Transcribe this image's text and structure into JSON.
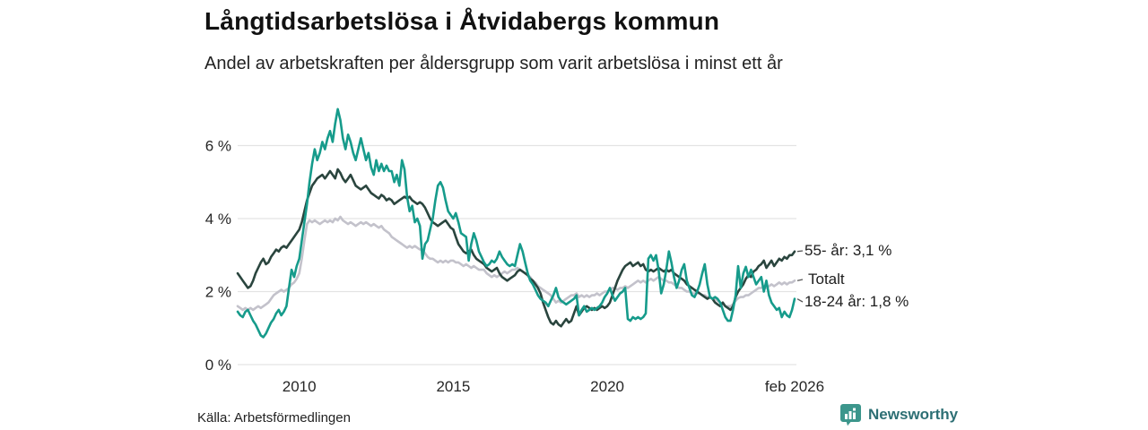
{
  "header": {
    "title": "Långtidsarbetslösa i Åtvidabergs kommun",
    "subtitle": "Andel av arbetskraften per åldersgrupp som varit arbetslösa i minst ett år"
  },
  "footer": {
    "source": "Källa: Arbetsförmedlingen",
    "brand_name": "Newsworthy",
    "brand_icon": "bar-chart-pin-icon",
    "brand_color": "#3c968c",
    "brand_text_color": "#2d6f74"
  },
  "colors": {
    "grid": "#e3e3e3",
    "axis_text": "#262626",
    "leader": "#555555",
    "background": "#ffffff"
  },
  "chart_data": {
    "type": "line",
    "title": "Långtidsarbetslösa i Åtvidabergs kommun",
    "subtitle": "Andel av arbetskraften per åldersgrupp som varit arbetslösa i minst ett år",
    "x_start": "2008-01",
    "x_end": "2026-02",
    "x_unit": "month",
    "ylim": [
      0,
      7.2
    ],
    "grid": true,
    "legend_position": "right-end-labels",
    "y_ticks": [
      {
        "value": 0,
        "label": "0 %"
      },
      {
        "value": 2,
        "label": "2 %"
      },
      {
        "value": 4,
        "label": "4 %"
      },
      {
        "value": 6,
        "label": "6 %"
      }
    ],
    "x_ticks": [
      {
        "index": 24,
        "label": "2010"
      },
      {
        "index": 84,
        "label": "2015"
      },
      {
        "index": 144,
        "label": "2020"
      },
      {
        "index": 217,
        "label": "feb 2026"
      }
    ],
    "series": [
      {
        "name": "55- år",
        "label": "55- år: 3,1 %",
        "end_value": 3.1,
        "color": "#2a453e",
        "values": [
          2.5,
          2.4,
          2.3,
          2.2,
          2.1,
          2.15,
          2.3,
          2.5,
          2.65,
          2.8,
          2.9,
          2.75,
          2.8,
          2.95,
          3.05,
          3.15,
          3.1,
          3.2,
          3.25,
          3.2,
          3.3,
          3.4,
          3.5,
          3.6,
          3.7,
          3.9,
          4.2,
          4.5,
          4.7,
          4.9,
          5.0,
          5.1,
          5.15,
          5.2,
          5.1,
          5.2,
          5.3,
          5.2,
          5.1,
          5.35,
          5.25,
          5.1,
          5.0,
          5.1,
          5.2,
          5.05,
          4.9,
          4.85,
          4.8,
          4.85,
          4.9,
          4.8,
          4.7,
          4.65,
          4.6,
          4.55,
          4.65,
          4.6,
          4.5,
          4.55,
          4.5,
          4.4,
          4.45,
          4.5,
          4.55,
          4.6,
          4.55,
          4.6,
          4.5,
          4.45,
          4.4,
          4.45,
          4.4,
          4.3,
          4.15,
          4.0,
          3.9,
          3.85,
          3.8,
          3.85,
          3.9,
          3.95,
          3.85,
          3.75,
          3.7,
          3.5,
          3.3,
          3.2,
          3.1,
          3.05,
          3.1,
          3.15,
          3.0,
          2.9,
          2.85,
          2.8,
          2.75,
          2.65,
          2.6,
          2.55,
          2.6,
          2.65,
          2.5,
          2.4,
          2.35,
          2.3,
          2.35,
          2.4,
          2.45,
          2.55,
          2.6,
          2.55,
          2.5,
          2.45,
          2.35,
          2.3,
          2.2,
          2.1,
          1.95,
          1.7,
          1.5,
          1.3,
          1.15,
          1.1,
          1.2,
          1.1,
          1.05,
          1.15,
          1.25,
          1.15,
          1.2,
          1.4,
          1.6,
          1.35,
          1.45,
          1.55,
          1.6,
          1.55,
          1.5,
          1.55,
          1.5,
          1.55,
          1.6,
          1.55,
          1.6,
          1.7,
          1.9,
          2.1,
          2.3,
          2.45,
          2.6,
          2.7,
          2.75,
          2.8,
          2.7,
          2.75,
          2.8,
          2.7,
          2.75,
          2.6,
          2.55,
          2.6,
          2.55,
          2.6,
          2.65,
          2.6,
          2.55,
          2.6,
          2.55,
          2.6,
          2.5,
          2.45,
          2.4,
          2.35,
          2.3,
          2.2,
          2.15,
          2.1,
          2.05,
          2.0,
          1.95,
          1.9,
          1.85,
          1.8,
          1.85,
          1.8,
          1.7,
          1.65,
          1.6,
          1.7,
          1.6,
          1.55,
          1.5,
          1.6,
          1.85,
          2.0,
          2.1,
          2.2,
          2.35,
          2.45,
          2.4,
          2.55,
          2.6,
          2.7,
          2.75,
          2.85,
          2.65,
          2.75,
          2.85,
          2.7,
          2.8,
          2.9,
          2.85,
          2.95,
          2.9,
          3.0,
          3.0,
          3.1
        ]
      },
      {
        "name": "Totalt",
        "label": "Totalt",
        "color": "#c3c2cb",
        "values": [
          1.6,
          1.55,
          1.5,
          1.55,
          1.5,
          1.55,
          1.5,
          1.55,
          1.6,
          1.55,
          1.6,
          1.65,
          1.7,
          1.8,
          1.9,
          1.95,
          2.0,
          2.05,
          2.0,
          2.05,
          2.1,
          2.2,
          2.25,
          2.35,
          2.5,
          2.9,
          3.4,
          3.85,
          3.95,
          3.9,
          3.95,
          3.9,
          3.85,
          3.9,
          3.95,
          3.9,
          3.95,
          3.9,
          4.0,
          3.95,
          4.05,
          3.95,
          3.9,
          3.85,
          3.9,
          3.85,
          3.8,
          3.85,
          3.9,
          3.85,
          3.9,
          3.85,
          3.8,
          3.85,
          3.8,
          3.75,
          3.8,
          3.7,
          3.65,
          3.6,
          3.5,
          3.45,
          3.4,
          3.35,
          3.3,
          3.25,
          3.2,
          3.25,
          3.2,
          3.25,
          3.2,
          3.15,
          3.15,
          3.05,
          2.95,
          2.9,
          2.9,
          2.85,
          2.8,
          2.85,
          2.8,
          2.85,
          2.8,
          2.85,
          2.85,
          2.8,
          2.8,
          2.75,
          2.7,
          2.75,
          2.7,
          2.65,
          2.7,
          2.65,
          2.6,
          2.6,
          2.6,
          2.5,
          2.45,
          2.4,
          2.45,
          2.4,
          2.45,
          2.5,
          2.55,
          2.5,
          2.55,
          2.6,
          2.6,
          2.65,
          2.6,
          2.55,
          2.5,
          2.45,
          2.4,
          2.3,
          2.25,
          2.15,
          2.1,
          2.05,
          2.0,
          1.95,
          1.9,
          1.8,
          1.7,
          1.75,
          1.7,
          1.75,
          1.8,
          1.85,
          1.9,
          1.9,
          1.95,
          1.85,
          1.9,
          1.85,
          1.9,
          1.85,
          1.9,
          1.9,
          1.95,
          1.9,
          1.95,
          2.0,
          2.0,
          2.05,
          2.1,
          2.1,
          2.05,
          2.1,
          2.1,
          2.15,
          2.1,
          2.15,
          2.2,
          2.25,
          2.3,
          2.25,
          2.3,
          2.25,
          2.3,
          2.35,
          2.3,
          2.35,
          2.4,
          2.35,
          2.3,
          2.3,
          2.25,
          2.25,
          2.2,
          2.15,
          2.1,
          2.1,
          2.05,
          2.0,
          2.0,
          1.95,
          1.95,
          1.95,
          1.95,
          1.9,
          1.9,
          1.85,
          1.85,
          1.8,
          1.8,
          1.75,
          1.7,
          1.65,
          1.6,
          1.6,
          1.6,
          1.65,
          1.75,
          1.82,
          1.85,
          1.85,
          1.9,
          1.9,
          1.95,
          2.0,
          2.05,
          2.1,
          2.1,
          2.15,
          2.1,
          2.15,
          2.2,
          2.15,
          2.2,
          2.25,
          2.2,
          2.25,
          2.2,
          2.25,
          2.25,
          2.3
        ]
      },
      {
        "name": "18-24 år",
        "label": "18-24 år: 1,8 %",
        "end_value": 1.8,
        "color": "#169b8b",
        "values": [
          1.45,
          1.35,
          1.3,
          1.45,
          1.5,
          1.35,
          1.2,
          1.1,
          0.95,
          0.8,
          0.75,
          0.85,
          1.0,
          1.15,
          1.25,
          1.4,
          1.5,
          1.35,
          1.45,
          1.6,
          2.1,
          2.6,
          2.4,
          2.7,
          2.9,
          3.4,
          3.9,
          4.4,
          5.0,
          5.5,
          5.9,
          5.6,
          5.8,
          6.1,
          5.9,
          6.2,
          6.4,
          6.1,
          6.6,
          7.0,
          6.7,
          6.2,
          5.9,
          6.3,
          6.1,
          5.8,
          5.6,
          5.9,
          6.2,
          5.9,
          5.6,
          5.8,
          5.4,
          5.2,
          5.6,
          5.3,
          5.5,
          5.3,
          5.45,
          5.3,
          5.3,
          5.0,
          5.2,
          4.9,
          5.6,
          5.35,
          4.6,
          4.2,
          4.35,
          3.9,
          4.0,
          3.8,
          2.9,
          3.3,
          3.4,
          3.7,
          4.0,
          4.5,
          4.9,
          5.0,
          4.85,
          4.5,
          4.2,
          4.1,
          4.0,
          4.15,
          3.9,
          3.6,
          3.55,
          3.5,
          2.85,
          3.3,
          3.6,
          3.4,
          3.1,
          2.95,
          2.8,
          2.7,
          2.75,
          2.85,
          2.8,
          2.9,
          3.1,
          2.95,
          2.85,
          2.75,
          2.7,
          2.75,
          2.7,
          3.0,
          3.3,
          3.1,
          2.8,
          2.5,
          2.3,
          2.2,
          2.05,
          1.9,
          1.8,
          1.75,
          1.7,
          1.6,
          1.75,
          1.9,
          2.1,
          1.85,
          1.75,
          1.7,
          1.65,
          1.7,
          1.75,
          1.8,
          1.9,
          1.35,
          1.5,
          1.6,
          1.45,
          1.5,
          1.55,
          1.5,
          1.55,
          1.6,
          1.7,
          1.85,
          1.95,
          2.1,
          1.9,
          1.75,
          1.85,
          1.95,
          2.0,
          2.1,
          1.25,
          1.2,
          1.3,
          1.25,
          1.3,
          1.25,
          1.3,
          1.4,
          2.9,
          3.0,
          2.85,
          3.0,
          2.6,
          1.95,
          2.2,
          2.6,
          3.1,
          2.8,
          2.4,
          2.1,
          2.3,
          2.6,
          2.75,
          2.3,
          2.1,
          1.9,
          1.85,
          2.0,
          2.2,
          2.5,
          2.75,
          2.2,
          1.85,
          1.8,
          1.85,
          1.8,
          1.7,
          1.5,
          1.3,
          1.2,
          1.2,
          1.5,
          1.9,
          2.7,
          2.1,
          2.5,
          2.68,
          2.4,
          2.6,
          2.4,
          2.2,
          2.3,
          2.4,
          2.0,
          2.3,
          1.9,
          1.7,
          1.6,
          1.5,
          1.55,
          1.3,
          1.45,
          1.35,
          1.3,
          1.5,
          1.8
        ]
      }
    ]
  }
}
